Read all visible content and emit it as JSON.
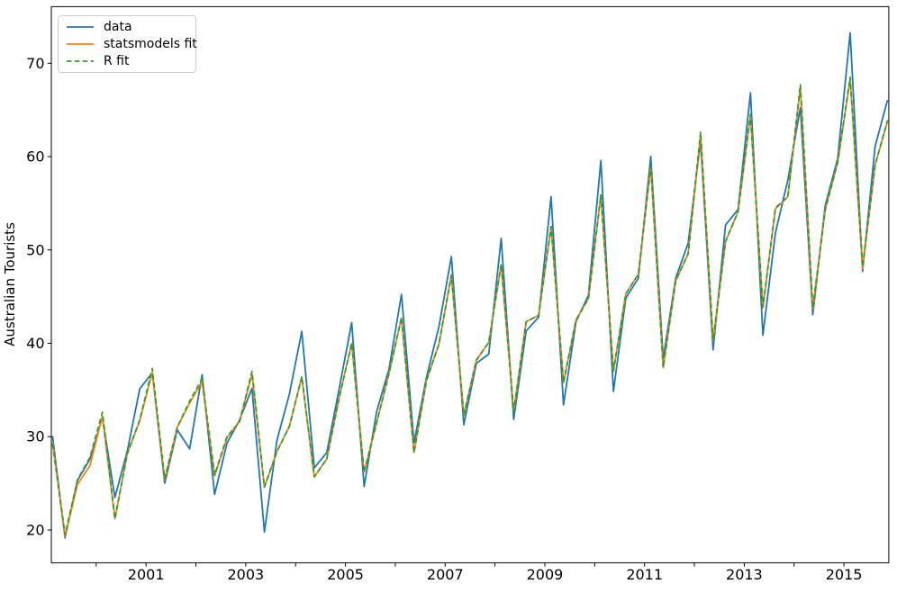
{
  "figure": {
    "background": "#ffffff",
    "frame": "full-box",
    "grid": false
  },
  "legend": {
    "position": "upper left",
    "entries": [
      {
        "label": "data",
        "color": "#1f77b4",
        "line_style": "solid"
      },
      {
        "label": "statsmodels fit",
        "color": "#ff7f0e",
        "line_style": "solid"
      },
      {
        "label": "R fit",
        "color": "#2ca02c",
        "line_style": "dashed"
      }
    ]
  },
  "chart_data": {
    "type": "line",
    "title": "",
    "xlabel": "",
    "ylabel": "Australian Tourists",
    "x_first": 1999.125,
    "x_step": 0.25,
    "x_frequency": "quarterly",
    "xlim": [
      1999.1,
      2015.9
    ],
    "ylim": [
      16.49,
      76.06
    ],
    "grid": false,
    "legend_position": "upper left",
    "x_ticks": [
      {
        "t": 2000,
        "label": ""
      },
      {
        "t": 2001,
        "label": "2001"
      },
      {
        "t": 2002,
        "label": ""
      },
      {
        "t": 2003,
        "label": "2003"
      },
      {
        "t": 2004,
        "label": ""
      },
      {
        "t": 2005,
        "label": "2005"
      },
      {
        "t": 2006,
        "label": ""
      },
      {
        "t": 2007,
        "label": "2007"
      },
      {
        "t": 2008,
        "label": ""
      },
      {
        "t": 2009,
        "label": "2009"
      },
      {
        "t": 2010,
        "label": ""
      },
      {
        "t": 2011,
        "label": "2011"
      },
      {
        "t": 2012,
        "label": ""
      },
      {
        "t": 2013,
        "label": "2013"
      },
      {
        "t": 2014,
        "label": ""
      },
      {
        "t": 2015,
        "label": "2015"
      }
    ],
    "y_ticks": [
      {
        "v": 20,
        "label": "20"
      },
      {
        "v": 30,
        "label": "30"
      },
      {
        "v": 40,
        "label": "40"
      },
      {
        "v": 50,
        "label": "50"
      },
      {
        "v": 60,
        "label": "60"
      },
      {
        "v": 70,
        "label": "70"
      }
    ],
    "series": [
      {
        "name": "data",
        "color": "#1f77b4",
        "line_style": "solid",
        "values": [
          30.05,
          19.15,
          25.32,
          27.59,
          32.08,
          23.49,
          28.48,
          35.12,
          36.84,
          25.01,
          30.72,
          28.69,
          36.64,
          23.82,
          29.31,
          31.77,
          35.18,
          19.78,
          29.6,
          34.54,
          41.27,
          26.66,
          28.28,
          35.19,
          42.21,
          24.65,
          32.67,
          37.26,
          45.24,
          29.35,
          36.34,
          41.78,
          49.28,
          31.28,
          37.85,
          38.84,
          51.24,
          31.84,
          41.32,
          42.8,
          55.71,
          33.41,
          42.32,
          45.16,
          59.58,
          34.84,
          44.84,
          46.97,
          60.02,
          38.37,
          46.98,
          50.73,
          61.65,
          39.3,
          52.67,
          54.33,
          66.83,
          40.87,
          51.83,
          57.49,
          65.25,
          43.06,
          54.76,
          59.83,
          73.26,
          47.7,
          61.1,
          66.06
        ]
      },
      {
        "name": "statsmodels fit",
        "color": "#ff7f0e",
        "line_style": "solid",
        "values": [
          29.4,
          19.3,
          24.9,
          26.9,
          32.2,
          21.2,
          28.2,
          31.7,
          36.9,
          25.4,
          31.0,
          33.6,
          35.9,
          25.8,
          29.9,
          31.6,
          36.7,
          24.6,
          28.4,
          31.1,
          36.4,
          25.7,
          27.6,
          34.2,
          40.0,
          26.2,
          31.5,
          36.8,
          42.7,
          28.3,
          36.0,
          39.9,
          47.3,
          32.3,
          38.2,
          40.1,
          48.4,
          32.7,
          42.3,
          43.0,
          52.5,
          35.8,
          42.5,
          44.8,
          55.9,
          37.0,
          45.3,
          47.4,
          58.9,
          37.4,
          46.7,
          49.6,
          62.3,
          40.2,
          50.9,
          54.1,
          64.4,
          43.8,
          54.4,
          55.7,
          67.4,
          43.7,
          54.3,
          59.4,
          68.3,
          48.0,
          59.1,
          63.8
        ]
      },
      {
        "name": "R fit",
        "color": "#2ca02c",
        "line_style": "dashed",
        "values": [
          29.2,
          19.5,
          25.4,
          27.8,
          32.6,
          21.2,
          28.2,
          31.8,
          37.3,
          25.5,
          31.0,
          33.8,
          36.2,
          25.9,
          30.0,
          31.6,
          37.0,
          24.6,
          28.4,
          31.1,
          36.4,
          25.7,
          27.6,
          34.2,
          40.0,
          26.2,
          31.5,
          36.8,
          42.8,
          28.3,
          36.0,
          39.9,
          47.3,
          32.3,
          38.2,
          40.1,
          48.5,
          32.7,
          42.3,
          43.0,
          52.5,
          35.8,
          42.5,
          44.8,
          55.9,
          37.0,
          45.3,
          47.4,
          59.0,
          37.4,
          46.7,
          49.6,
          62.6,
          40.3,
          50.9,
          54.1,
          64.5,
          43.9,
          54.5,
          55.7,
          67.7,
          43.8,
          54.3,
          59.4,
          68.5,
          48.2,
          59.1,
          63.9
        ]
      }
    ]
  }
}
